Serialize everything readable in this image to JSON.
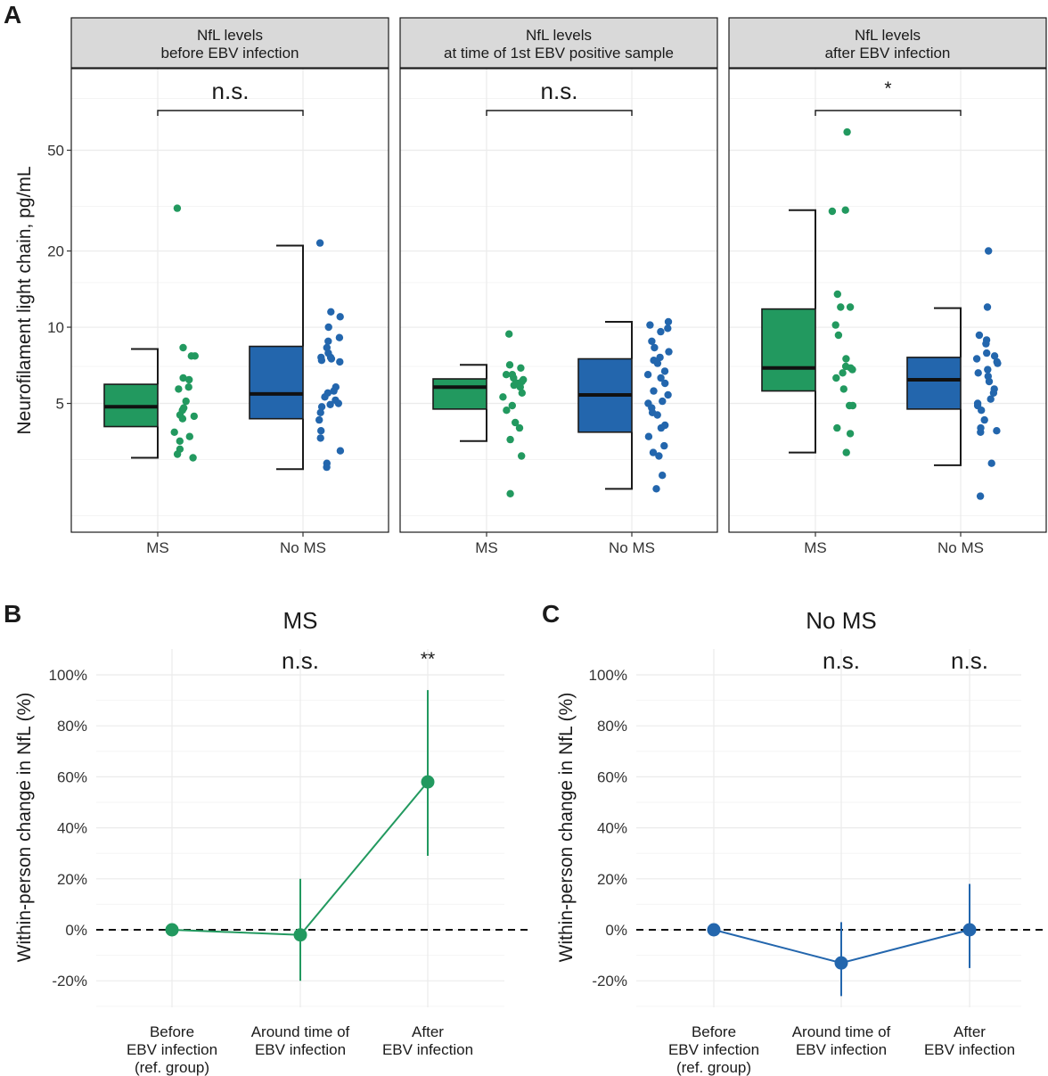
{
  "figure": {
    "panel_letters": [
      "A",
      "B",
      "C"
    ]
  },
  "colors": {
    "ms": "#22995f",
    "no_ms": "#2366ad",
    "grid": "#ebebeb",
    "strip_fill": "#d9d9d9"
  },
  "chart_data": [
    {
      "id": "A1",
      "type": "boxplot",
      "strip_title": [
        "NfL levels",
        "before EBV infection"
      ],
      "ylabel": "Neurofilament light chain, pg/mL",
      "y_scale": "log",
      "ylim": [
        1.55,
        105
      ],
      "yticks": [
        5,
        10,
        20,
        50
      ],
      "categories": [
        "MS",
        "No MS"
      ],
      "significance": "n.s.",
      "boxes": [
        {
          "group": "MS",
          "whisker_low": 3.05,
          "q1": 4.05,
          "median": 4.85,
          "q3": 5.95,
          "whisker_high": 8.2
        },
        {
          "group": "No MS",
          "whisker_low": 2.75,
          "q1": 4.35,
          "median": 5.45,
          "q3": 8.4,
          "whisker_high": 21
        }
      ],
      "points": [
        {
          "group": "MS",
          "values": [
            29.5,
            8.3,
            7.7,
            7.7,
            6.3,
            6.2,
            5.8,
            5.7,
            5.1,
            4.8,
            4.7,
            4.5,
            4.45,
            4.35,
            3.85,
            3.7,
            3.55,
            3.3,
            3.15,
            3.05
          ]
        },
        {
          "group": "No MS",
          "values": [
            21.5,
            11.5,
            11.0,
            10.0,
            9.1,
            8.8,
            8.3,
            7.9,
            7.6,
            7.6,
            7.5,
            7.4,
            7.3,
            5.8,
            5.6,
            5.5,
            5.3,
            5.15,
            5.0,
            4.95,
            4.85,
            4.6,
            4.3,
            3.9,
            3.65,
            3.25,
            2.9,
            2.8
          ]
        }
      ]
    },
    {
      "id": "A2",
      "type": "boxplot",
      "strip_title": [
        "NfL levels",
        "at time of 1st EBV positive sample"
      ],
      "y_scale": "log",
      "ylim": [
        1.55,
        105
      ],
      "categories": [
        "MS",
        "No MS"
      ],
      "significance": "n.s.",
      "boxes": [
        {
          "group": "MS",
          "whisker_low": 3.55,
          "q1": 4.75,
          "median": 5.8,
          "q3": 6.25,
          "whisker_high": 7.1
        },
        {
          "group": "No MS",
          "whisker_low": 2.3,
          "q1": 3.85,
          "median": 5.4,
          "q3": 7.5,
          "whisker_high": 10.5
        }
      ],
      "points": [
        {
          "group": "MS",
          "values": [
            9.4,
            7.1,
            6.9,
            6.5,
            6.5,
            6.3,
            6.2,
            6.1,
            6.0,
            5.9,
            5.8,
            5.5,
            5.3,
            4.9,
            4.7,
            4.2,
            4.0,
            3.6,
            3.1,
            2.2
          ]
        },
        {
          "group": "No MS",
          "values": [
            10.5,
            10.2,
            9.9,
            9.6,
            8.8,
            8.3,
            8.0,
            7.6,
            7.4,
            7.2,
            6.7,
            6.5,
            6.3,
            6.0,
            5.6,
            5.4,
            5.1,
            5.0,
            4.8,
            4.6,
            4.5,
            4.1,
            4.0,
            3.7,
            3.4,
            3.2,
            3.1,
            2.6,
            2.3
          ]
        }
      ]
    },
    {
      "id": "A3",
      "type": "boxplot",
      "strip_title": [
        "NfL levels",
        "after EBV infection"
      ],
      "y_scale": "log",
      "ylim": [
        1.55,
        105
      ],
      "categories": [
        "MS",
        "No MS"
      ],
      "significance": "*",
      "boxes": [
        {
          "group": "MS",
          "whisker_low": 3.2,
          "q1": 5.6,
          "median": 6.9,
          "q3": 11.8,
          "whisker_high": 29
        },
        {
          "group": "No MS",
          "whisker_low": 2.85,
          "q1": 4.75,
          "median": 6.2,
          "q3": 7.6,
          "whisker_high": 11.9
        }
      ],
      "points": [
        {
          "group": "MS",
          "values": [
            59,
            29,
            28.7,
            13.5,
            12.0,
            12.0,
            10.2,
            9.3,
            7.5,
            7.0,
            6.9,
            6.8,
            6.6,
            6.3,
            5.7,
            4.9,
            4.9,
            4.0,
            3.8,
            3.2
          ]
        },
        {
          "group": "No MS",
          "values": [
            20,
            12.0,
            9.3,
            8.9,
            8.6,
            7.9,
            7.7,
            7.5,
            7.3,
            7.2,
            6.8,
            6.6,
            6.4,
            6.1,
            5.7,
            5.5,
            5.2,
            5.0,
            4.9,
            4.7,
            4.3,
            4.0,
            3.9,
            3.85,
            2.9,
            2.15
          ]
        }
      ]
    },
    {
      "id": "B",
      "type": "line",
      "title": "MS",
      "ylabel": "Within-person change in NfL (%)",
      "ylim": [
        -30,
        110
      ],
      "yticks": [
        -20,
        0,
        20,
        40,
        60,
        80,
        100
      ],
      "ytick_labels": [
        "-20%",
        "0%",
        "20%",
        "40%",
        "60%",
        "80%",
        "100%"
      ],
      "categories": [
        [
          "Before",
          "EBV infection",
          "(ref. group)"
        ],
        [
          "Around time of",
          "EBV infection"
        ],
        [
          "After",
          "EBV infection"
        ]
      ],
      "values": [
        0,
        -2,
        58
      ],
      "ci_low": [
        null,
        -20,
        29
      ],
      "ci_high": [
        null,
        20,
        94
      ],
      "significance": [
        "",
        "n.s.",
        "**"
      ],
      "reference_line": 0
    },
    {
      "id": "C",
      "type": "line",
      "title": "No MS",
      "ylabel": "Within-person change in NfL (%)",
      "ylim": [
        -30,
        110
      ],
      "yticks": [
        -20,
        0,
        20,
        40,
        60,
        80,
        100
      ],
      "ytick_labels": [
        "-20%",
        "0%",
        "20%",
        "40%",
        "60%",
        "80%",
        "100%"
      ],
      "categories": [
        [
          "Before",
          "EBV infection",
          "(ref. group)"
        ],
        [
          "Around time of",
          "EBV infection"
        ],
        [
          "After",
          "EBV infection"
        ]
      ],
      "values": [
        0,
        -13,
        0
      ],
      "ci_low": [
        null,
        -26,
        -15
      ],
      "ci_high": [
        null,
        3,
        18
      ],
      "significance": [
        "",
        "n.s.",
        "n.s."
      ],
      "reference_line": 0
    }
  ]
}
